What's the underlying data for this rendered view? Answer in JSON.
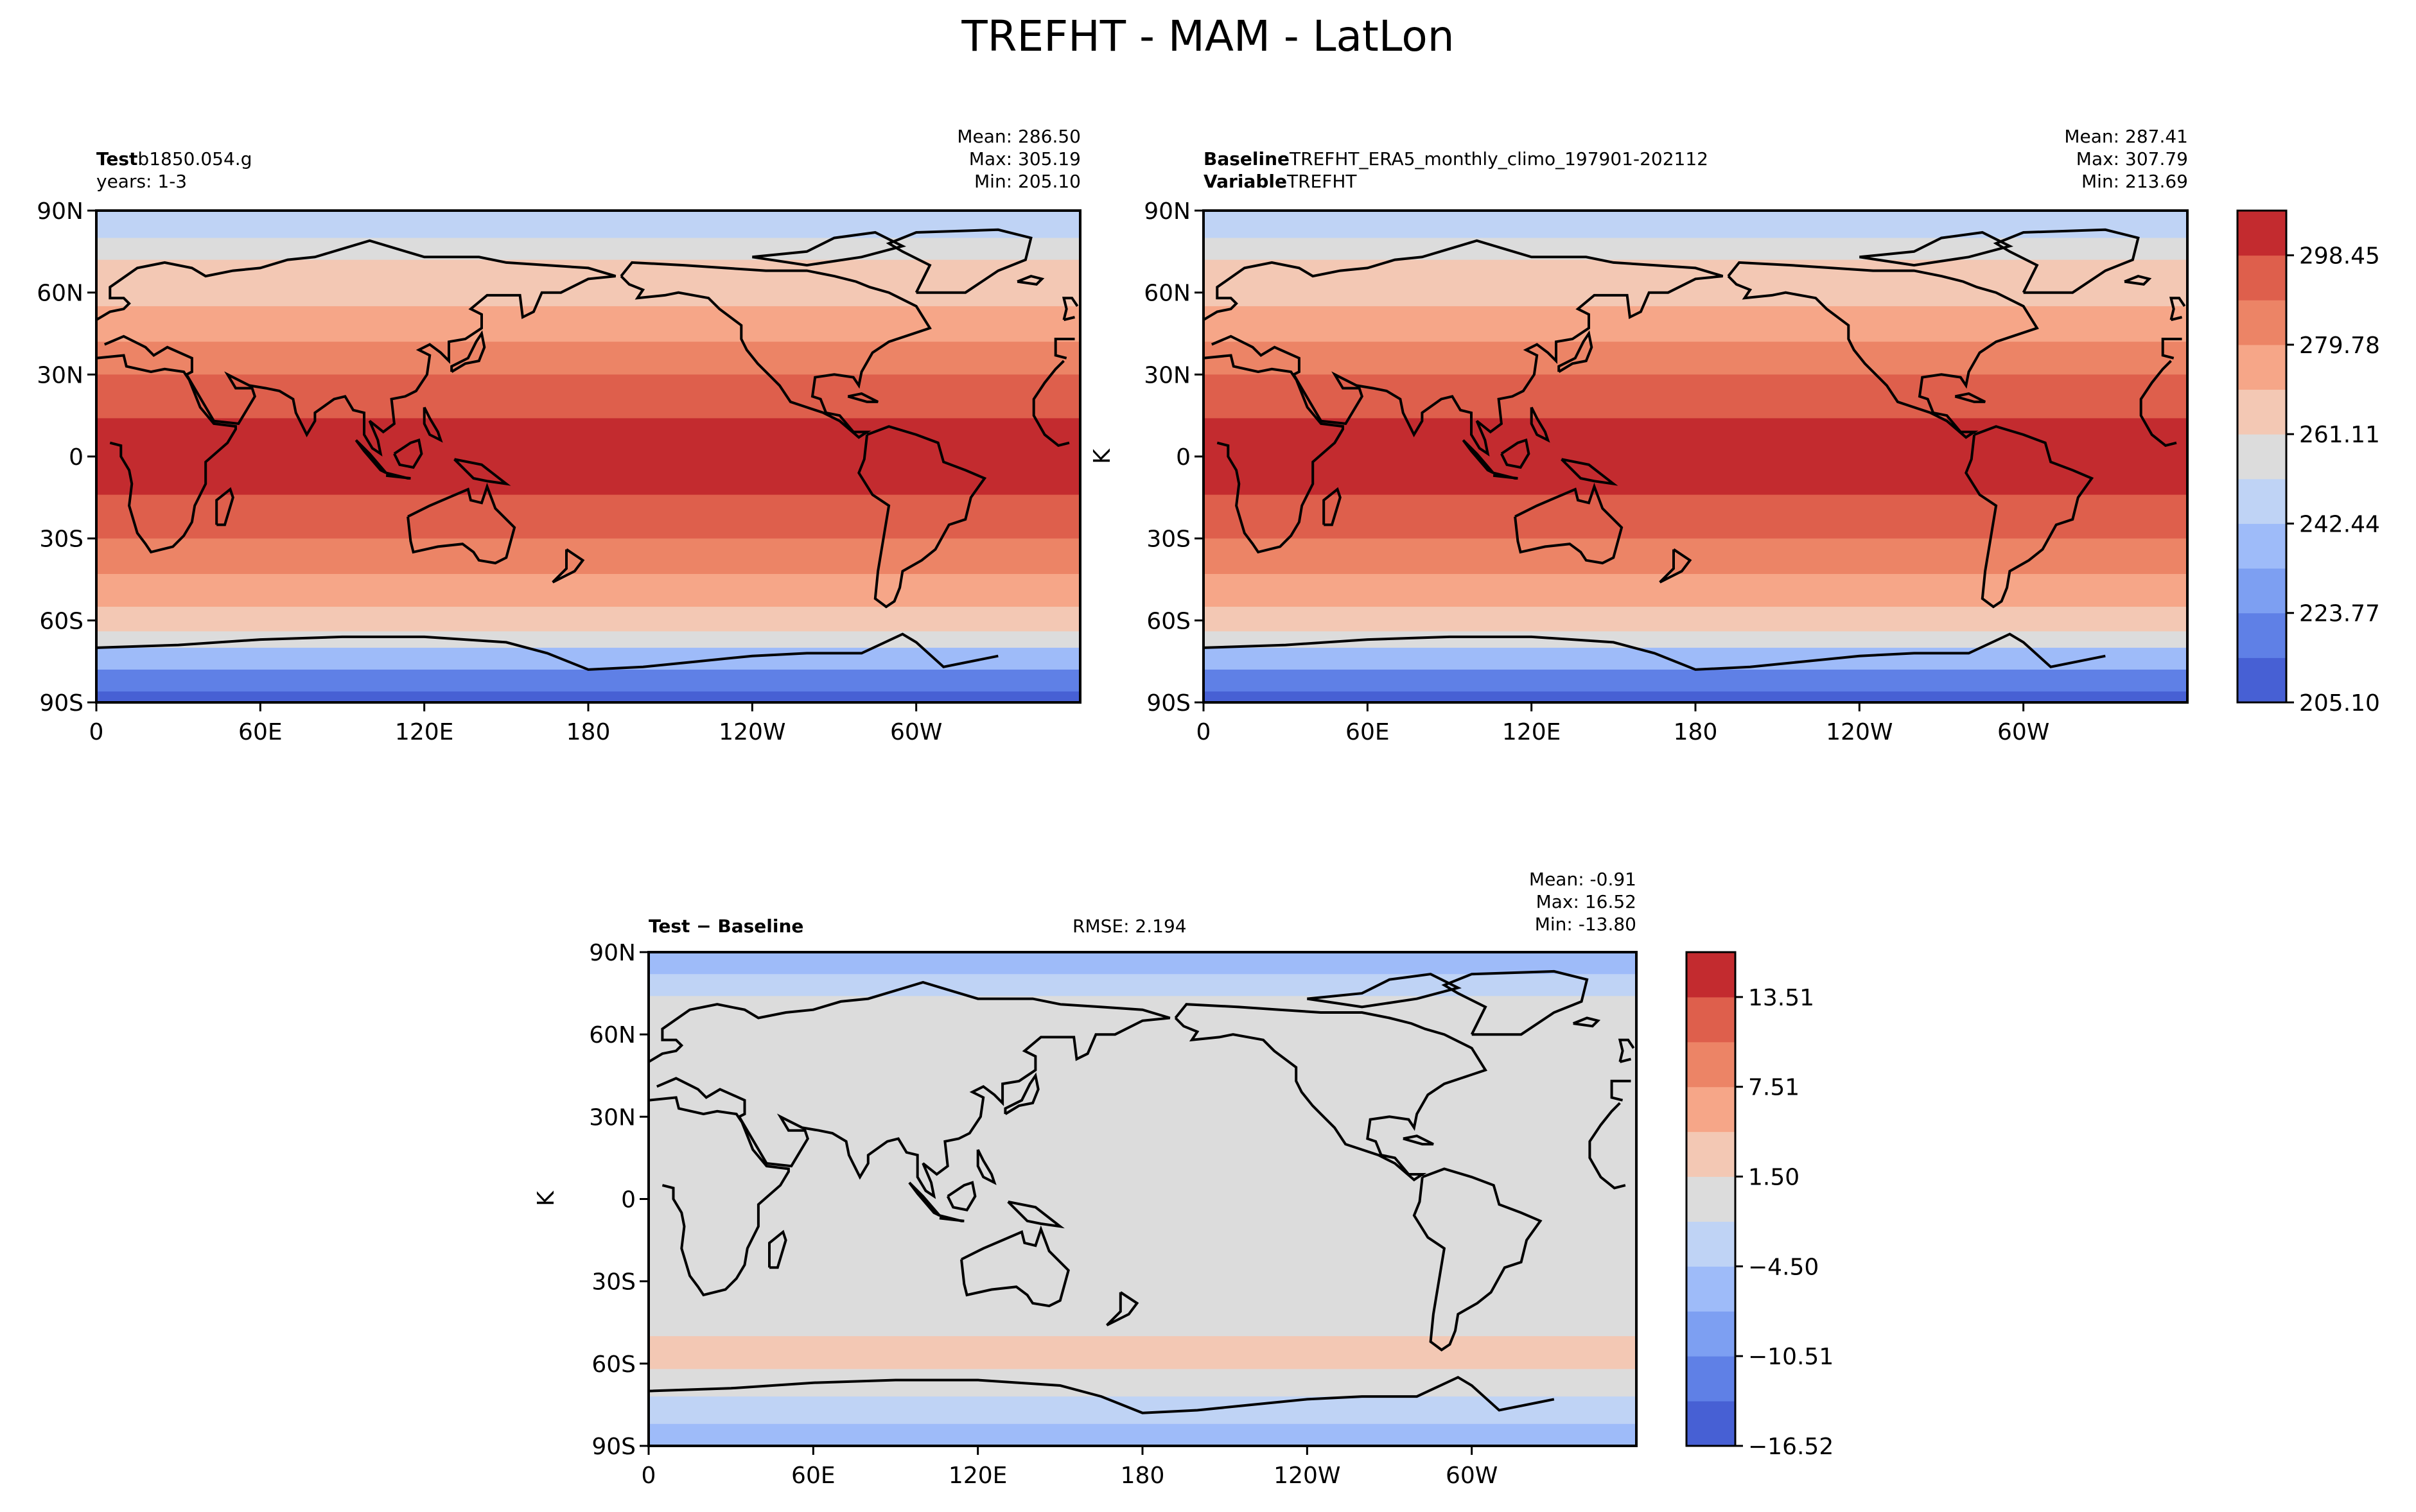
{
  "title": "TREFHT - MAM - LatLon",
  "colors": {
    "levels": [
      "#4760d4",
      "#5f80e6",
      "#7d9ff2",
      "#9ebbf9",
      "#bfd3f5",
      "#dcdcdc",
      "#f3c8b4",
      "#f6a688",
      "#ec8466",
      "#de5f4c",
      "#c32b2f"
    ],
    "ocean_bg": "#de5f4c",
    "diff_bg": "#dcdcdc"
  },
  "panels": {
    "test": {
      "name_label": "Test",
      "name_value": "b1850.054.g",
      "years_label": "years: 1-3",
      "mean": "Mean: 286.50",
      "max": "Max: 305.19",
      "min": "Min: 205.10"
    },
    "baseline": {
      "name_label": "Baseline",
      "name_value": "TREFHT_ERA5_monthly_climo_197901-202112",
      "variable_label": "Variable",
      "variable_value": "TREFHT",
      "mean": "Mean: 287.41",
      "max": "Max: 307.79",
      "min": "Min: 213.69",
      "ylabel": "K"
    },
    "diff": {
      "name_label": "Test − Baseline",
      "rmse": "RMSE: 2.194",
      "mean": "Mean: -0.91",
      "max": "Max: 16.52",
      "min": "Min: -13.80",
      "ylabel": "K"
    }
  },
  "chart_data": [
    {
      "type": "heatmap",
      "panel": "test",
      "x_ticks": [
        "0",
        "60E",
        "120E",
        "180",
        "120W",
        "60W"
      ],
      "y_ticks": [
        "90N",
        "60N",
        "30N",
        "0",
        "30S",
        "60S",
        "90S"
      ],
      "xlim": [
        0,
        360
      ],
      "ylim": [
        -90,
        90
      ],
      "mean": 286.5,
      "max": 305.19,
      "min": 205.1
    },
    {
      "type": "heatmap",
      "panel": "baseline",
      "x_ticks": [
        "0",
        "60E",
        "120E",
        "180",
        "120W",
        "60W"
      ],
      "y_ticks": [
        "90N",
        "60N",
        "30N",
        "0",
        "30S",
        "60S",
        "90S"
      ],
      "xlim": [
        0,
        360
      ],
      "ylim": [
        -90,
        90
      ],
      "mean": 287.41,
      "max": 307.79,
      "min": 213.69,
      "colorbar_ticks": [
        "298.45",
        "279.78",
        "261.11",
        "242.44",
        "223.77",
        "205.10"
      ],
      "colorbar_range": [
        205.1,
        307.79
      ]
    },
    {
      "type": "heatmap",
      "panel": "diff",
      "x_ticks": [
        "0",
        "60E",
        "120E",
        "180",
        "120W",
        "60W"
      ],
      "y_ticks": [
        "90N",
        "60N",
        "30N",
        "0",
        "30S",
        "60S",
        "90S"
      ],
      "xlim": [
        0,
        360
      ],
      "ylim": [
        -90,
        90
      ],
      "rmse": 2.194,
      "mean": -0.91,
      "max": 16.52,
      "min": -13.8,
      "colorbar_ticks": [
        "13.51",
        "7.51",
        "1.50",
        "−4.50",
        "−10.51",
        "−16.52"
      ],
      "colorbar_range": [
        -16.52,
        16.52
      ]
    }
  ]
}
